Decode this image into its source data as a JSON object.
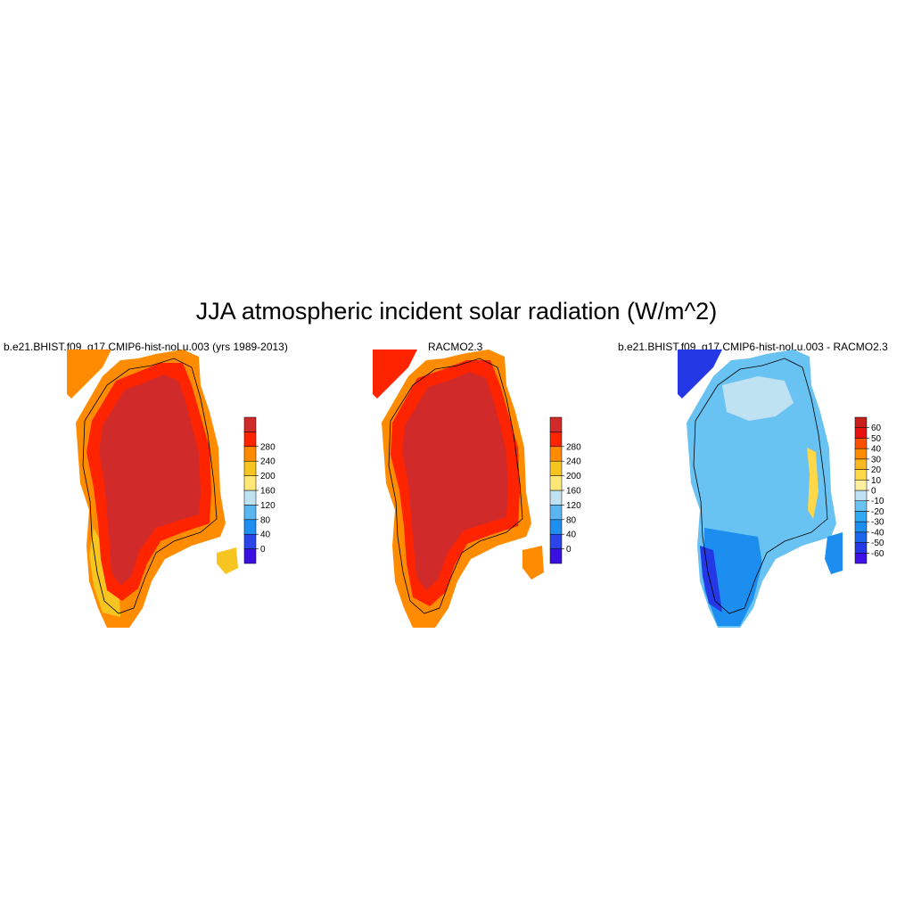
{
  "main_title": "JJA atmospheric incident solar radiation (W/m^2)",
  "panels": [
    {
      "title": "b.e21.BHIST.f09_g17.CMIP6-hist-noLu.003 (yrs 1989-2013)",
      "colorbar": {
        "colors": [
          "#3a10e0",
          "#2a46e8",
          "#1e8ef0",
          "#5ab6f0",
          "#bfe2f3",
          "#ffe878",
          "#f7c520",
          "#ff8c00",
          "#ff2400",
          "#d12a2a"
        ],
        "tick_labels": [
          "0",
          "40",
          "80",
          "120",
          "160",
          "200",
          "240",
          "280"
        ]
      }
    },
    {
      "title": "RACMO2.3",
      "colorbar": {
        "colors": [
          "#3a10e0",
          "#2a46e8",
          "#1e8ef0",
          "#5ab6f0",
          "#bfe2f3",
          "#ffe878",
          "#f7c520",
          "#ff8c00",
          "#ff2400",
          "#d12a2a"
        ],
        "tick_labels": [
          "0",
          "40",
          "80",
          "120",
          "160",
          "200",
          "240",
          "280"
        ]
      }
    },
    {
      "title": "b.e21.BHIST.f09_g17.CMIP6-hist-noLu.003 - RACMO2.3",
      "colorbar": {
        "colors": [
          "#4010e6",
          "#2438e6",
          "#1c66ee",
          "#1c8ef0",
          "#30a8f2",
          "#68c2f2",
          "#bfe2f3",
          "#fff0a0",
          "#ffd84a",
          "#f7b820",
          "#ff8c00",
          "#ff5000",
          "#e81010",
          "#c81e1e"
        ],
        "tick_labels": [
          "-60",
          "-50",
          "-40",
          "-30",
          "-20",
          "-10",
          "0",
          "10",
          "20",
          "30",
          "40",
          "50",
          "60"
        ]
      }
    }
  ]
}
